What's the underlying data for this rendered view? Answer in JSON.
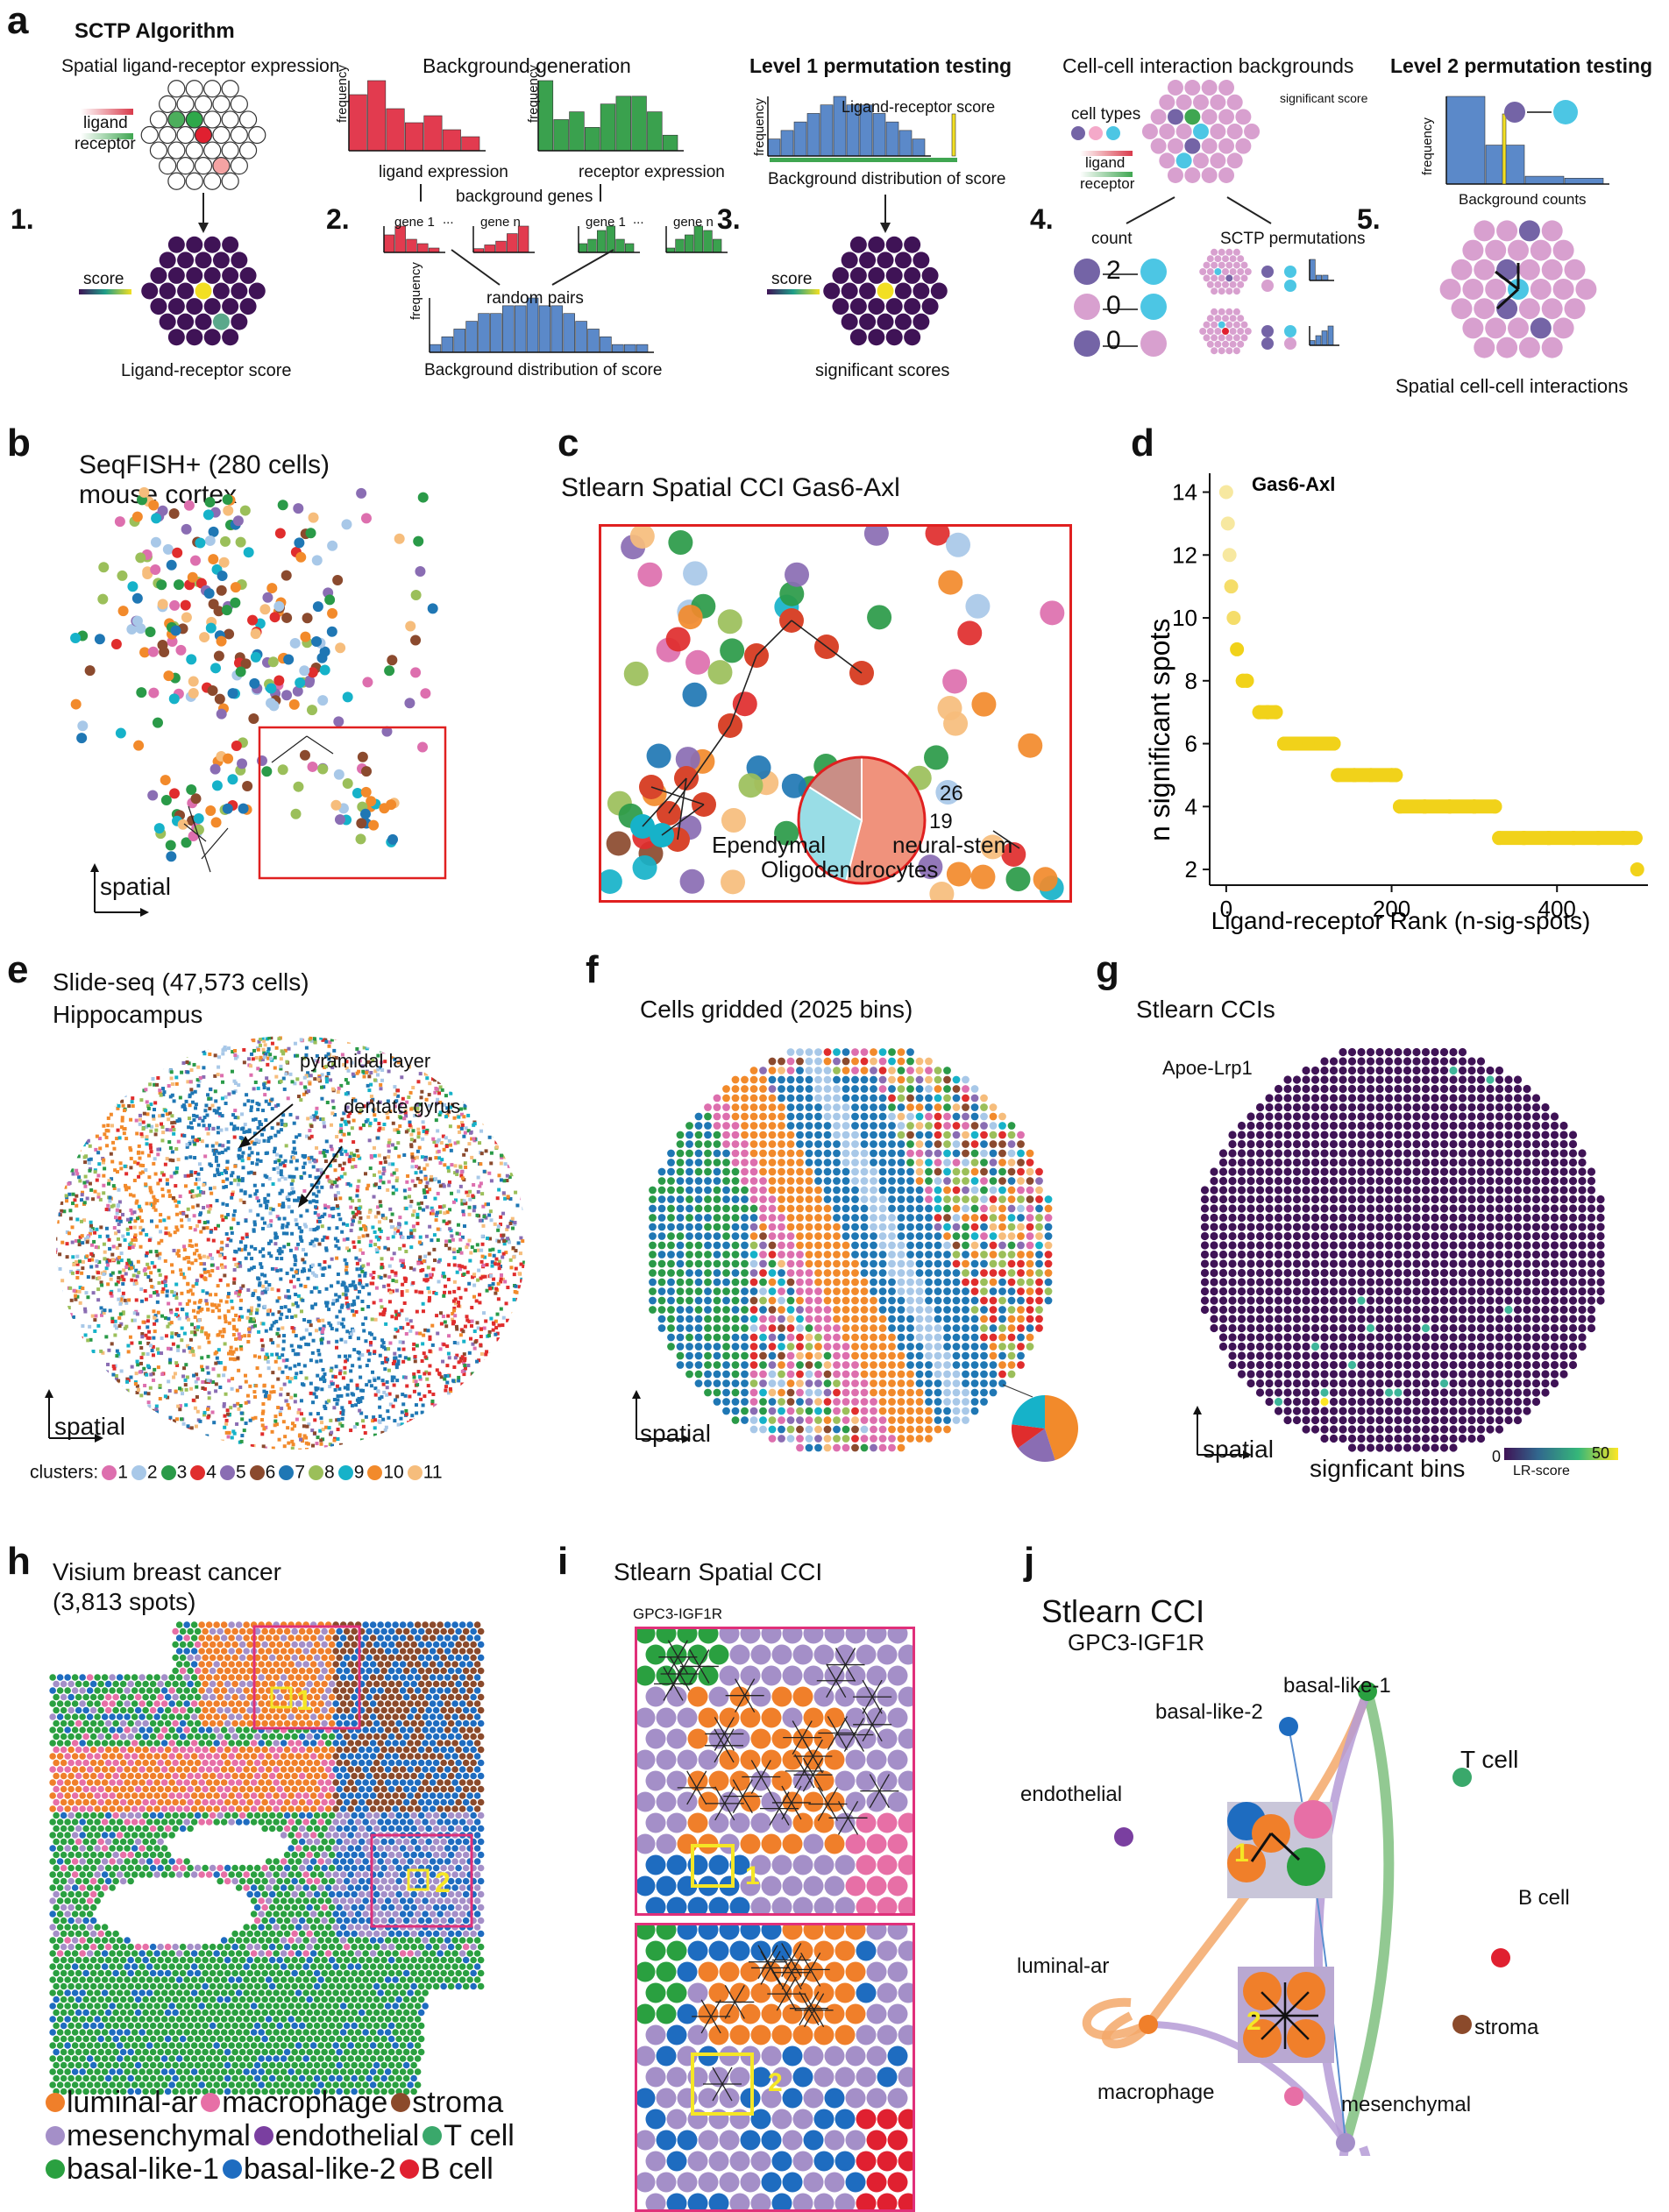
{
  "panel_labels": {
    "a": "a",
    "b": "b",
    "c": "c",
    "d": "d",
    "e": "e",
    "f": "f",
    "g": "g",
    "h": "h",
    "i": "i",
    "j": "j"
  },
  "colors": {
    "navy": "#3f1356",
    "gold": "#f2df23",
    "blue": "#5b89c9",
    "red": "#d93a4b",
    "green": "#3fa651",
    "c1": "#dd6fae",
    "c2": "#a8c8e8",
    "c3": "#2a9a48",
    "c4": "#e02d2d",
    "c5": "#8a6db3",
    "c6": "#8b4a2e",
    "c7": "#1f77b4",
    "c8": "#9bbf5a",
    "c9": "#16b2c9",
    "c10": "#f28a2b",
    "c11": "#f6bd7c",
    "luminal": "#f07f2a",
    "macrophage": "#e76fa6",
    "stroma": "#8b4a2b",
    "mesenchymal": "#a48fc8",
    "endothelial": "#7a3fa0",
    "tcell": "#3aa86b",
    "basal1": "#2aa040",
    "basal2": "#1e6cc0",
    "bcell": "#e02030"
  },
  "a": {
    "title": "SCTP Algorithm",
    "s1_title": "Spatial ligand-receptor expression",
    "ligand": "ligand",
    "receptor": "receptor",
    "step1": "1.",
    "score": "score",
    "lr_score": "Ligand-receptor score",
    "s2_title": "Background generation",
    "frequency": "frequency",
    "ligand_expr": "ligand expression",
    "receptor_expr": "receptor expression",
    "background_genes": "background genes",
    "gene1": "gene 1",
    "genen": "gene n",
    "dots": "...",
    "step2": "2.",
    "random_pairs": "random pairs",
    "bg_dist": "Background distribution of score",
    "s3_title": "Level 1 permutation testing",
    "step3": "3.",
    "lr_score2": "Ligand-receptor score",
    "bg_dist2": "Background distribution of score",
    "sig_scores": "significant scores",
    "s4_title": "Cell-cell interaction backgrounds",
    "cell_types": "cell types",
    "significant_score": "significant score",
    "step4": "4.",
    "count": "count",
    "sctp_perm": "SCTP permutations",
    "n2": "2",
    "n0a": "0",
    "n0b": "0",
    "s5_title": "Level 2 permutation testing",
    "step5": "5.",
    "bg_counts": "Background counts",
    "spatial_cci": "Spatial cell-cell interactions"
  },
  "b": {
    "title1": "SeqFISH+ (280 cells)",
    "title2": "mouse cortex",
    "spatial": "spatial"
  },
  "c": {
    "title": "Stlearn Spatial CCI Gas6-Axl",
    "n26": "26",
    "n19": "19",
    "ependymal": "Ependymal",
    "neural": "neural-stem",
    "oligo": "Oligodendrocytes"
  },
  "d": {
    "ylabel": "n significant spots",
    "xlabel": "Ligand-receptor Rank (n-sig-spots)",
    "annotation": "Gas6-Axl",
    "chart_data": {
      "type": "scatter",
      "title": "",
      "xlabel": "Ligand-receptor Rank (n-sig-spots)",
      "ylabel": "n significant spots",
      "xlim": [
        -20,
        510
      ],
      "ylim": [
        1.5,
        14.6
      ],
      "xticks": [
        0,
        200,
        400
      ],
      "xtick_labels": [
        "0",
        "200",
        "400"
      ],
      "yticks": [
        2,
        4,
        6,
        8,
        10,
        12,
        14
      ],
      "ytick_labels": [
        "2",
        "4",
        "6",
        "8",
        "10",
        "12",
        "14"
      ],
      "points": [
        [
          0,
          14
        ],
        [
          2,
          13
        ],
        [
          4,
          12
        ],
        [
          6,
          11
        ],
        [
          9,
          10
        ],
        [
          13,
          9
        ],
        [
          20,
          8
        ],
        [
          25,
          8
        ],
        [
          40,
          7
        ],
        [
          50,
          7
        ],
        [
          60,
          7
        ],
        [
          70,
          6
        ],
        [
          85,
          6
        ],
        [
          100,
          6
        ],
        [
          115,
          6
        ],
        [
          130,
          6
        ],
        [
          135,
          5
        ],
        [
          155,
          5
        ],
        [
          175,
          5
        ],
        [
          200,
          5
        ],
        [
          205,
          5
        ],
        [
          210,
          4
        ],
        [
          240,
          4
        ],
        [
          270,
          4
        ],
        [
          300,
          4
        ],
        [
          325,
          4
        ],
        [
          330,
          3
        ],
        [
          360,
          3
        ],
        [
          390,
          3
        ],
        [
          420,
          3
        ],
        [
          450,
          3
        ],
        [
          480,
          3
        ],
        [
          495,
          3
        ],
        [
          497,
          2
        ]
      ]
    }
  },
  "e": {
    "title1": "Slide-seq (47,573 cells)",
    "title2": "Hippocampus",
    "pyramidal": "pyramidal layer",
    "dentate": "dentate gyrus",
    "spatial": "spatial",
    "clusters_label": "clusters:",
    "clusters": [
      "1",
      "2",
      "3",
      "4",
      "5",
      "6",
      "7",
      "8",
      "9",
      "10",
      "11"
    ]
  },
  "f": {
    "title": "Cells gridded (2025 bins)",
    "spatial": "spatial"
  },
  "g": {
    "title": "Stlearn CCIs",
    "lr": "Apoe-Lrp1",
    "spatial": "spatial",
    "sig_bins": "signficant bins",
    "cb_min": "0",
    "cb_label": "LR-score",
    "cb_max": "50"
  },
  "h": {
    "title1": "Visium breast cancer",
    "title2": "(3,813 spots)",
    "box1": "1",
    "box2": "2",
    "legend": [
      [
        "luminal-ar",
        "macrophage",
        "stroma"
      ],
      [
        "mesenchymal",
        "endothelial",
        "T cell"
      ],
      [
        "basal-like-1",
        "basal-like-2",
        "B cell"
      ]
    ]
  },
  "i": {
    "title": "Stlearn Spatial CCI",
    "lr": "GPC3-IGF1R",
    "n1": "1",
    "n2": "2"
  },
  "j": {
    "title": "Stlearn CCI",
    "lr": "GPC3-IGF1R",
    "nodes": {
      "basal1": "basal-like-1",
      "basal2": "basal-like-2",
      "tcell": "T cell",
      "endothelial": "endothelial",
      "bcell": "B cell",
      "luminal": "luminal-ar",
      "stroma": "stroma",
      "macrophage": "macrophage",
      "mesenchymal": "mesenchymal"
    },
    "n1": "1",
    "n2": "2"
  }
}
